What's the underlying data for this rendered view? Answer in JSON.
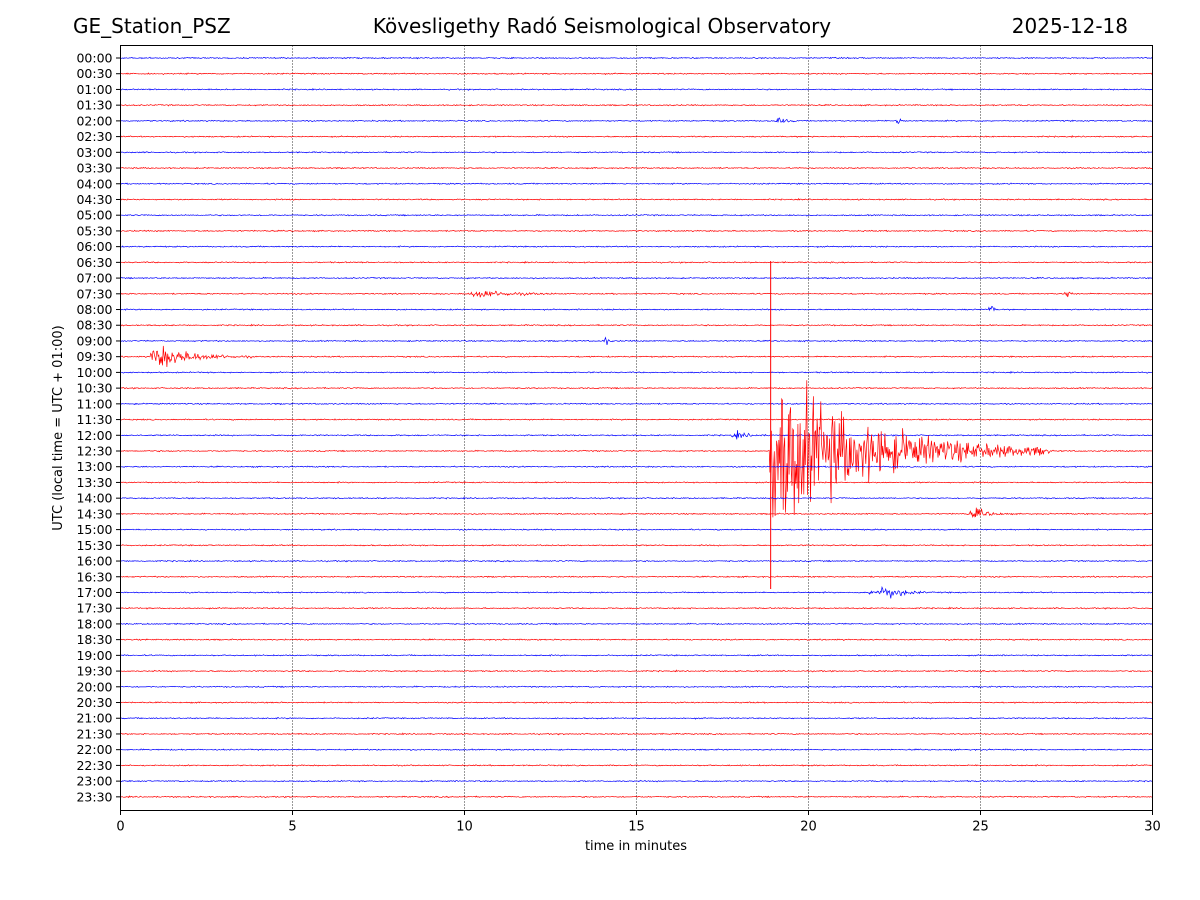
{
  "header": {
    "station": "GE_Station_PSZ",
    "title": "Kövesligethy Radó Seismological Observatory",
    "date": "2025-12-18"
  },
  "chart_data": {
    "type": "line",
    "title": "Kövesligethy Radó Seismological Observatory",
    "xlabel": "time in minutes",
    "ylabel": "UTC (local time = UTC + 01:00)",
    "xlim": [
      0,
      30
    ],
    "xticks": [
      0,
      5,
      10,
      15,
      20,
      25,
      30
    ],
    "grid": "vertical dotted lines at x ticks",
    "line_colors": [
      "#0000ff",
      "#ff0000"
    ],
    "rows": [
      "00:00",
      "00:30",
      "01:00",
      "01:30",
      "02:00",
      "02:30",
      "03:00",
      "03:30",
      "04:00",
      "04:30",
      "05:00",
      "05:30",
      "06:00",
      "06:30",
      "07:00",
      "07:30",
      "08:00",
      "08:30",
      "09:00",
      "09:30",
      "10:00",
      "10:30",
      "11:00",
      "11:30",
      "12:00",
      "12:30",
      "13:00",
      "13:30",
      "14:00",
      "14:30",
      "15:00",
      "15:30",
      "16:00",
      "16:30",
      "17:00",
      "17:30",
      "18:00",
      "18:30",
      "19:00",
      "19:30",
      "20:00",
      "20:30",
      "21:00",
      "21:30",
      "22:00",
      "22:30",
      "23:00",
      "23:30"
    ],
    "events": [
      {
        "row": "09:30",
        "start": 0.85,
        "peak": 1.0,
        "end": 3.8,
        "amplitude": 1.0
      },
      {
        "row": "07:30",
        "start": 10.1,
        "peak": 10.4,
        "end": 12.8,
        "amplitude": 0.35
      },
      {
        "row": "12:30",
        "start": 18.85,
        "peak": 18.9,
        "end": 27.0,
        "amplitude": 6.5
      },
      {
        "row": "12:00",
        "start": 17.7,
        "peak": 17.9,
        "end": 18.9,
        "amplitude": 0.25
      },
      {
        "row": "14:30",
        "start": 24.6,
        "peak": 24.9,
        "end": 25.9,
        "amplitude": 0.4
      },
      {
        "row": "17:00",
        "start": 21.6,
        "peak": 22.4,
        "end": 23.5,
        "amplitude": 0.5
      },
      {
        "row": "02:00",
        "start": 19.0,
        "peak": 19.1,
        "end": 19.7,
        "amplitude": 0.3
      },
      {
        "row": "02:00",
        "start": 22.5,
        "peak": 22.6,
        "end": 22.9,
        "amplitude": 0.3
      },
      {
        "row": "09:00",
        "start": 14.0,
        "peak": 14.1,
        "end": 14.3,
        "amplitude": 0.5
      },
      {
        "row": "08:00",
        "start": 25.2,
        "peak": 25.3,
        "end": 25.5,
        "amplitude": 0.5
      },
      {
        "row": "07:30",
        "start": 27.4,
        "peak": 27.5,
        "end": 27.7,
        "amplitude": 0.6
      }
    ]
  }
}
